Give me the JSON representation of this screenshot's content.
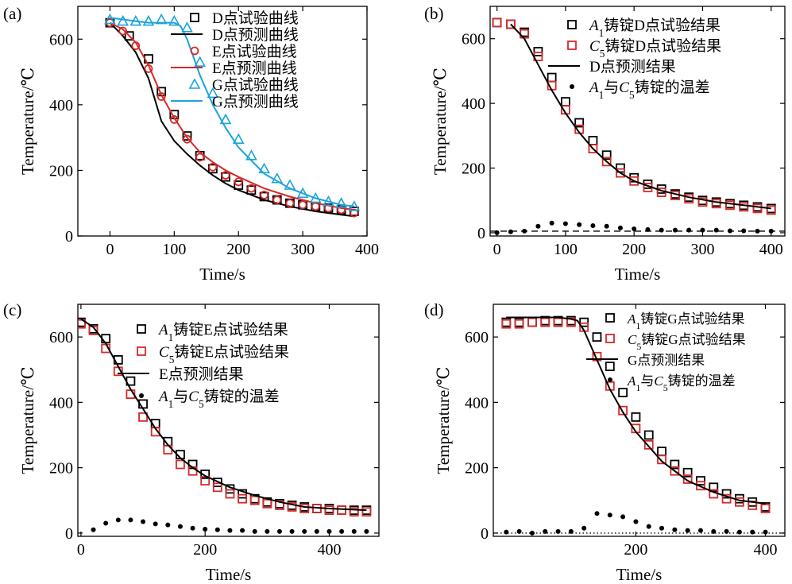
{
  "chart_data": [
    {
      "panel": "(a)",
      "type": "line",
      "xlabel": "Time/s",
      "ylabel": "Temperature/℃",
      "xlim": [
        -50,
        400
      ],
      "ylim": [
        0,
        700
      ],
      "xticks": [
        0,
        100,
        200,
        300,
        400
      ],
      "yticks": [
        0,
        200,
        400,
        600
      ],
      "legend_position": "top-right",
      "series": [
        {
          "name": "D点试验曲线",
          "kind": "scatter",
          "marker": "square",
          "color": "#000000",
          "x": [
            0,
            30,
            60,
            80,
            100,
            120,
            140,
            160,
            180,
            200,
            220,
            240,
            260,
            280,
            300,
            320,
            340,
            360,
            380
          ],
          "y": [
            650,
            610,
            540,
            440,
            370,
            305,
            245,
            205,
            180,
            155,
            140,
            120,
            110,
            100,
            95,
            90,
            85,
            80,
            75
          ]
        },
        {
          "name": "D点预测曲线",
          "kind": "line",
          "color": "#000000",
          "x": [
            0,
            20,
            40,
            60,
            80,
            100,
            120,
            140,
            160,
            180,
            200,
            240,
            280,
            320,
            360,
            380
          ],
          "y": [
            650,
            610,
            560,
            480,
            350,
            290,
            250,
            215,
            185,
            160,
            140,
            110,
            90,
            75,
            65,
            60
          ]
        },
        {
          "name": "E点试验曲线",
          "kind": "scatter",
          "marker": "circle",
          "color": "#d42a2a",
          "x": [
            0,
            20,
            40,
            60,
            80,
            100,
            120,
            140,
            160,
            180,
            200,
            220,
            240,
            260,
            280,
            300,
            320,
            340,
            360,
            380
          ],
          "y": [
            650,
            625,
            580,
            510,
            425,
            355,
            295,
            240,
            210,
            185,
            165,
            145,
            125,
            110,
            100,
            95,
            90,
            85,
            80,
            70
          ]
        },
        {
          "name": "E点预测曲线",
          "kind": "line",
          "color": "#d42a2a",
          "x": [
            0,
            20,
            40,
            60,
            80,
            100,
            120,
            140,
            160,
            180,
            200,
            240,
            280,
            320,
            360,
            380
          ],
          "y": [
            650,
            630,
            590,
            520,
            430,
            360,
            300,
            255,
            225,
            200,
            180,
            145,
            120,
            100,
            85,
            80
          ]
        },
        {
          "name": "G点试验曲线",
          "kind": "scatter",
          "marker": "triangle",
          "color": "#1ba3d9",
          "x": [
            0,
            20,
            40,
            60,
            80,
            100,
            120,
            140,
            160,
            180,
            200,
            220,
            240,
            260,
            280,
            300,
            320,
            340,
            360,
            380
          ],
          "y": [
            660,
            655,
            655,
            655,
            660,
            655,
            635,
            530,
            435,
            355,
            295,
            245,
            205,
            175,
            155,
            130,
            115,
            105,
            100,
            90
          ]
        },
        {
          "name": "G点预测曲线",
          "kind": "line",
          "color": "#1ba3d9",
          "x": [
            0,
            20,
            40,
            60,
            80,
            100,
            110,
            120,
            140,
            160,
            180,
            200,
            240,
            280,
            320,
            360,
            380
          ],
          "y": [
            665,
            660,
            655,
            650,
            650,
            650,
            640,
            600,
            490,
            400,
            330,
            270,
            190,
            145,
            115,
            95,
            90
          ]
        }
      ]
    },
    {
      "panel": "(b)",
      "type": "line",
      "xlabel": "Time/s",
      "ylabel": "Temperature/℃",
      "xlim": [
        -10,
        420
      ],
      "ylim": [
        -10,
        700
      ],
      "xticks": [
        0,
        100,
        200,
        300,
        400
      ],
      "yticks": [
        0,
        200,
        400,
        600
      ],
      "legend_position": "top-right",
      "series": [
        {
          "name": "A1铸锭D点试验结果",
          "name_main": "A",
          "name_sub": "1",
          "name_rest": "铸锭D点试验结果",
          "kind": "scatter",
          "marker": "square",
          "color": "#000000",
          "x": [
            0,
            20,
            40,
            60,
            80,
            100,
            120,
            140,
            160,
            180,
            200,
            220,
            240,
            260,
            280,
            300,
            320,
            340,
            360,
            380,
            400
          ],
          "y": [
            650,
            645,
            620,
            560,
            480,
            405,
            340,
            285,
            240,
            200,
            170,
            150,
            135,
            120,
            110,
            100,
            95,
            90,
            85,
            80,
            75
          ]
        },
        {
          "name": "C5铸锭D点试验结果",
          "name_main": "C",
          "name_sub": "5",
          "name_rest": "铸锭D点试验结果",
          "kind": "scatter",
          "marker": "square",
          "color": "#d42a2a",
          "x": [
            0,
            20,
            40,
            60,
            80,
            100,
            120,
            140,
            160,
            180,
            200,
            220,
            240,
            260,
            280,
            300,
            320,
            340,
            360,
            380,
            400
          ],
          "y": [
            650,
            645,
            615,
            545,
            455,
            380,
            320,
            260,
            220,
            185,
            160,
            140,
            125,
            115,
            105,
            95,
            90,
            85,
            80,
            75,
            70
          ]
        },
        {
          "name": "D点预测结果",
          "kind": "line",
          "color": "#000000",
          "x": [
            20,
            40,
            60,
            80,
            100,
            120,
            140,
            160,
            180,
            200,
            240,
            280,
            320,
            360,
            400
          ],
          "y": [
            645,
            600,
            520,
            440,
            370,
            310,
            260,
            220,
            185,
            160,
            130,
            110,
            95,
            85,
            75
          ]
        },
        {
          "name": "A1与C5铸锭的温差",
          "name_parts": [
            "A",
            "1",
            "与",
            "C",
            "5",
            "铸锭的温差"
          ],
          "kind": "scatter",
          "marker": "dot",
          "color": "#000000",
          "x": [
            0,
            20,
            40,
            60,
            80,
            100,
            120,
            140,
            160,
            180,
            200,
            220,
            240,
            260,
            280,
            300,
            320,
            340,
            360,
            380,
            400
          ],
          "y": [
            0,
            3,
            5,
            20,
            30,
            28,
            25,
            22,
            20,
            15,
            12,
            10,
            8,
            8,
            8,
            8,
            8,
            6,
            6,
            5,
            5
          ]
        },
        {
          "name": "",
          "kind": "dashed-line",
          "color": "#000000",
          "x": [
            -10,
            420
          ],
          "y": [
            5,
            5
          ]
        }
      ]
    },
    {
      "panel": "(c)",
      "type": "line",
      "xlabel": "Time/s",
      "ylabel": "Temperature/℃",
      "xlim": [
        -5,
        480
      ],
      "ylim": [
        -10,
        700
      ],
      "xticks": [
        0,
        200,
        400
      ],
      "yticks": [
        0,
        200,
        400,
        600
      ],
      "legend_position": "top-right",
      "series": [
        {
          "name": "A1铸锭E点试验结果",
          "name_main": "A",
          "name_sub": "1",
          "name_rest": "铸锭E点试验结果",
          "kind": "scatter",
          "marker": "square",
          "color": "#000000",
          "x": [
            0,
            20,
            40,
            60,
            80,
            100,
            120,
            140,
            160,
            180,
            200,
            220,
            240,
            260,
            280,
            300,
            320,
            340,
            360,
            380,
            400,
            420,
            440,
            460
          ],
          "y": [
            645,
            625,
            595,
            530,
            465,
            395,
            335,
            280,
            240,
            210,
            180,
            155,
            135,
            120,
            105,
            95,
            90,
            85,
            80,
            75,
            75,
            70,
            70,
            70
          ]
        },
        {
          "name": "C5铸锭E点试验结果",
          "name_main": "C",
          "name_sub": "5",
          "name_rest": "铸锭E点试验结果",
          "kind": "scatter",
          "marker": "square",
          "color": "#d42a2a",
          "x": [
            0,
            20,
            40,
            60,
            80,
            100,
            120,
            140,
            160,
            180,
            200,
            220,
            240,
            260,
            280,
            300,
            320,
            340,
            360,
            380,
            400,
            420,
            440,
            460
          ],
          "y": [
            640,
            620,
            565,
            495,
            425,
            355,
            310,
            255,
            210,
            190,
            160,
            140,
            120,
            105,
            100,
            90,
            85,
            80,
            75,
            75,
            70,
            70,
            65,
            65
          ]
        },
        {
          "name": "E点预测结果",
          "kind": "line",
          "color": "#000000",
          "x": [
            0,
            20,
            40,
            60,
            80,
            100,
            120,
            140,
            160,
            180,
            200,
            240,
            280,
            320,
            360,
            400,
            460
          ],
          "y": [
            655,
            630,
            580,
            510,
            440,
            380,
            320,
            270,
            230,
            200,
            175,
            140,
            115,
            95,
            80,
            75,
            70
          ]
        },
        {
          "name": "A1与C5铸锭的温差",
          "name_parts": [
            "A",
            "1",
            "与",
            "C",
            "5",
            "铸锭的温差"
          ],
          "kind": "scatter",
          "marker": "dot",
          "color": "#000000",
          "x": [
            20,
            40,
            60,
            80,
            100,
            120,
            140,
            160,
            180,
            200,
            220,
            240,
            260,
            280,
            300,
            320,
            340,
            360,
            380,
            400,
            420,
            440,
            460
          ],
          "y": [
            10,
            30,
            40,
            40,
            35,
            28,
            25,
            20,
            15,
            12,
            10,
            8,
            8,
            5,
            5,
            5,
            5,
            5,
            5,
            5,
            5,
            5,
            5
          ]
        }
      ]
    },
    {
      "panel": "(d)",
      "type": "line",
      "xlabel": "Time/s",
      "ylabel": "Temperature/℃",
      "xlim": [
        -20,
        430
      ],
      "ylim": [
        -10,
        700
      ],
      "xticks": [
        200,
        400
      ],
      "yticks": [
        0,
        200,
        400,
        600
      ],
      "legend_position": "top-right",
      "series": [
        {
          "name": "A1铸锭G点试验结果",
          "name_main": "A",
          "name_sub": "1",
          "name_rest": "铸锭G点试验结果",
          "kind": "scatter",
          "marker": "square",
          "color": "#000000",
          "x": [
            0,
            20,
            40,
            60,
            80,
            100,
            120,
            140,
            160,
            180,
            200,
            220,
            240,
            260,
            280,
            300,
            320,
            340,
            360,
            380,
            400
          ],
          "y": [
            645,
            645,
            645,
            650,
            650,
            650,
            645,
            600,
            510,
            430,
            355,
            300,
            250,
            210,
            185,
            160,
            140,
            120,
            105,
            95,
            80
          ]
        },
        {
          "name": "C5铸锭G点试验结果",
          "name_main": "C",
          "name_sub": "5",
          "name_rest": "铸锭G点试验结果",
          "kind": "scatter",
          "marker": "square",
          "color": "#d42a2a",
          "x": [
            0,
            20,
            40,
            60,
            80,
            100,
            120,
            140,
            160,
            180,
            200,
            220,
            240,
            260,
            280,
            300,
            320,
            340,
            360,
            380,
            400
          ],
          "y": [
            640,
            640,
            645,
            645,
            645,
            645,
            630,
            540,
            450,
            375,
            320,
            270,
            225,
            190,
            165,
            145,
            120,
            105,
            95,
            85,
            75
          ]
        },
        {
          "name": "G点预测结果",
          "kind": "line",
          "color": "#000000",
          "x": [
            0,
            20,
            40,
            60,
            80,
            100,
            110,
            120,
            140,
            160,
            180,
            200,
            240,
            280,
            320,
            360,
            400
          ],
          "y": [
            660,
            660,
            660,
            660,
            660,
            655,
            650,
            620,
            530,
            440,
            370,
            310,
            220,
            160,
            125,
            100,
            90
          ]
        },
        {
          "name": "A1与C5铸锭的温差",
          "name_parts": [
            "A",
            "1",
            "与",
            "C",
            "5",
            "铸锭的温差"
          ],
          "kind": "scatter",
          "marker": "dot",
          "color": "#000000",
          "x": [
            0,
            20,
            40,
            60,
            80,
            100,
            120,
            140,
            160,
            180,
            200,
            220,
            240,
            260,
            280,
            300,
            320,
            340,
            360,
            380,
            400
          ],
          "y": [
            3,
            5,
            0,
            5,
            5,
            5,
            15,
            60,
            55,
            50,
            35,
            20,
            15,
            10,
            8,
            8,
            5,
            5,
            3,
            3,
            3
          ]
        },
        {
          "name": "",
          "kind": "dotted-line",
          "color": "#000000",
          "x": [
            -20,
            430
          ],
          "y": [
            0,
            0
          ]
        }
      ]
    }
  ]
}
